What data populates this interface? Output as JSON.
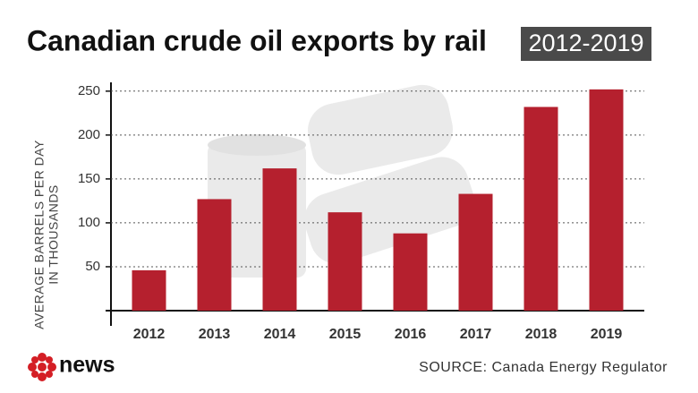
{
  "chart_data": {
    "type": "bar",
    "title": "Canadian crude oil exports by rail",
    "subtitle": "2012-2019",
    "y_label": [
      "AVERAGE BARRELS PER DAY",
      "IN THOUSANDS"
    ],
    "categories": [
      "2012",
      "2013",
      "2014",
      "2015",
      "2016",
      "2017",
      "2018",
      "2019"
    ],
    "values": [
      46,
      127,
      162,
      112,
      88,
      133,
      232,
      252
    ],
    "color": "#b5202e",
    "ylim": [
      0,
      260
    ],
    "yticks": [
      50,
      100,
      150,
      200,
      250
    ],
    "grid": true,
    "source": "SOURCE: Canada Energy Regulator",
    "logo_text": "news"
  }
}
